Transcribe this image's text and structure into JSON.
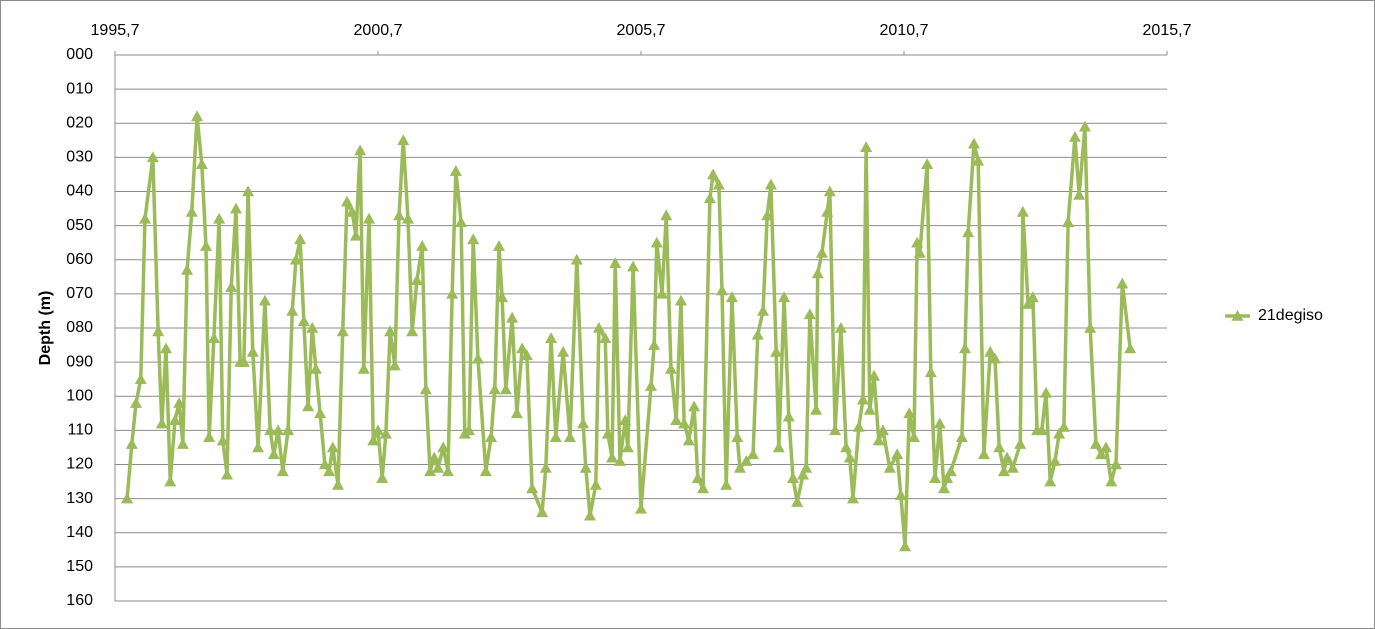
{
  "chart_data": {
    "type": "line",
    "y_label": "Depth (m)",
    "xlim": [
      1995.7,
      2015.7
    ],
    "xticks": [
      {
        "value": 1995.7,
        "label": "1995,7"
      },
      {
        "value": 2000.7,
        "label": "2000,7"
      },
      {
        "value": 2005.7,
        "label": "2005,7"
      },
      {
        "value": 2010.7,
        "label": "2010,7"
      },
      {
        "value": 2015.7,
        "label": "2015,7"
      }
    ],
    "x_axis_position": "top",
    "ylim": [
      0,
      160
    ],
    "y_inverted": true,
    "yticks": [
      {
        "value": 0,
        "label": "000"
      },
      {
        "value": 10,
        "label": "010"
      },
      {
        "value": 20,
        "label": "020"
      },
      {
        "value": 30,
        "label": "030"
      },
      {
        "value": 40,
        "label": "040"
      },
      {
        "value": 50,
        "label": "050"
      },
      {
        "value": 60,
        "label": "060"
      },
      {
        "value": 70,
        "label": "070"
      },
      {
        "value": 80,
        "label": "080"
      },
      {
        "value": 90,
        "label": "090"
      },
      100,
      110,
      120,
      130,
      140,
      150,
      160
    ],
    "grid": true,
    "legend": "right",
    "x": [
      1995.93,
      1996.02,
      1996.1,
      1996.19,
      1996.27,
      1996.42,
      1996.52,
      1996.59,
      1996.67,
      1996.75,
      1996.84,
      1996.92,
      1996.99,
      1997.07,
      1997.16,
      1997.26,
      1997.35,
      1997.43,
      1997.49,
      1997.58,
      1997.68,
      1997.75,
      1997.83,
      1997.91,
      1998.0,
      1998.08,
      1998.15,
      1998.23,
      1998.32,
      1998.42,
      1998.55,
      1998.65,
      1998.72,
      1998.8,
      1998.89,
      1998.99,
      1999.07,
      1999.14,
      1999.22,
      1999.29,
      1999.37,
      1999.45,
      1999.52,
      1999.6,
      1999.69,
      1999.77,
      1999.84,
      1999.94,
      2000.03,
      2000.11,
      2000.21,
      2000.28,
      2000.36,
      2000.43,
      2000.53,
      2000.61,
      2000.7,
      2000.78,
      2000.85,
      2000.93,
      2001.02,
      2001.1,
      2001.18,
      2001.27,
      2001.35,
      2001.44,
      2001.54,
      2001.61,
      2001.69,
      2001.77,
      2001.84,
      2001.94,
      2002.03,
      2002.11,
      2002.18,
      2002.28,
      2002.35,
      2002.43,
      2002.51,
      2002.6,
      2002.75,
      2002.85,
      2002.92,
      2003.0,
      2003.06,
      2003.13,
      2003.25,
      2003.34,
      2003.44,
      2003.53,
      2003.63,
      2003.82,
      2003.89,
      2003.99,
      2004.08,
      2004.22,
      2004.35,
      2004.48,
      2004.6,
      2004.65,
      2004.73,
      2004.84,
      2004.9,
      2005.02,
      2005.07,
      2005.15,
      2005.21,
      2005.3,
      2005.4,
      2005.45,
      2005.55,
      2005.7,
      2005.89,
      2005.95,
      2006.0,
      2006.1,
      2006.18,
      2006.27,
      2006.37,
      2006.46,
      2006.52,
      2006.61,
      2006.71,
      2006.78,
      2006.88,
      2007.01,
      2007.07,
      2007.18,
      2007.24,
      2007.32,
      2007.43,
      2007.53,
      2007.58,
      2007.7,
      2007.83,
      2007.92,
      2008.02,
      2008.1,
      2008.17,
      2008.27,
      2008.32,
      2008.42,
      2008.51,
      2008.59,
      2008.67,
      2008.78,
      2008.84,
      2008.91,
      2009.03,
      2009.06,
      2009.14,
      2009.24,
      2009.29,
      2009.39,
      2009.5,
      2009.6,
      2009.67,
      2009.73,
      2009.84,
      2009.92,
      2009.98,
      2010.05,
      2010.13,
      2010.22,
      2010.3,
      2010.43,
      2010.57,
      2010.64,
      2010.72,
      2010.8,
      2010.89,
      2010.95,
      2011.0,
      2011.14,
      2011.21,
      2011.29,
      2011.38,
      2011.46,
      2011.52,
      2011.59,
      2011.8,
      2011.86,
      2011.92,
      2012.03,
      2012.11,
      2012.22,
      2012.34,
      2012.43,
      2012.51,
      2012.6,
      2012.66,
      2012.77,
      2012.91,
      2012.96,
      2013.06,
      2013.15,
      2013.23,
      2013.32,
      2013.4,
      2013.48,
      2013.57,
      2013.65,
      2013.74,
      2013.82,
      2013.95,
      2014.03,
      2014.14,
      2014.24,
      2014.35,
      2014.45,
      2014.54,
      2014.64,
      2014.73,
      2014.85,
      2015.0
    ],
    "series": [
      {
        "name": "21degiso",
        "color": "#9bbb59",
        "values": [
          130,
          114,
          102,
          95,
          48,
          30,
          81,
          108,
          86,
          125,
          107,
          102,
          114,
          63,
          46,
          18,
          32,
          56,
          112,
          83,
          48,
          113,
          123,
          68,
          45,
          90,
          90,
          40,
          87,
          115,
          72,
          110,
          117,
          110,
          122,
          110,
          75,
          60,
          54,
          78,
          103,
          80,
          92,
          105,
          120,
          122,
          115,
          126,
          81,
          43,
          46,
          53,
          28,
          92,
          48,
          113,
          110,
          124,
          111,
          81,
          91,
          47,
          25,
          48,
          81,
          66,
          56,
          98,
          122,
          118,
          121,
          115,
          122,
          70,
          34,
          49,
          111,
          110,
          54,
          89,
          122,
          112,
          98,
          56,
          71,
          98,
          77,
          105,
          86,
          88,
          127,
          134,
          121,
          83,
          112,
          87,
          112,
          60,
          108,
          121,
          135,
          126,
          80,
          83,
          111,
          118,
          61,
          119,
          107,
          115,
          62,
          133,
          97,
          85,
          55,
          70,
          47,
          92,
          107,
          72,
          108,
          113,
          103,
          124,
          127,
          42,
          35,
          38,
          69,
          126,
          71,
          112,
          121,
          119,
          117,
          82,
          75,
          47,
          38,
          87,
          115,
          71,
          106,
          124,
          131,
          123,
          121,
          76,
          104,
          64,
          58,
          46,
          40,
          110,
          80,
          115,
          118,
          130,
          109,
          101,
          27,
          104,
          94,
          113,
          110,
          121,
          117,
          129,
          144,
          105,
          112,
          55,
          58,
          32,
          93,
          124,
          108,
          127,
          124,
          122,
          112,
          86,
          52,
          26,
          31,
          117,
          87,
          89,
          115,
          122,
          118,
          121,
          114,
          46,
          73,
          71,
          110,
          110,
          99,
          125,
          119,
          111,
          109,
          49,
          24,
          41,
          21,
          80,
          114,
          117,
          115,
          125,
          120,
          67,
          86
        ]
      }
    ]
  }
}
